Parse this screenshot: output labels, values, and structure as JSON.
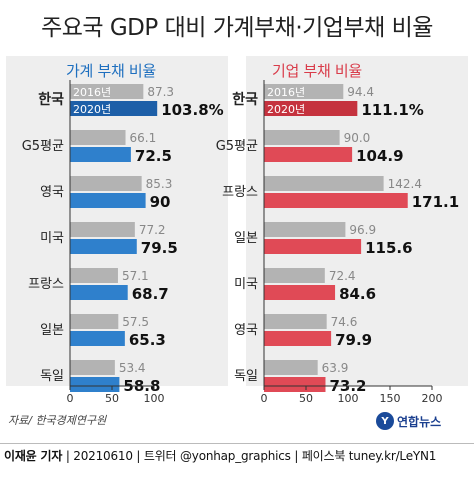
{
  "title": "주요국 GDP 대비 가계부채·기업부채 비율",
  "source": "자료/ 한국경제연구원",
  "logo": {
    "text": "연합뉴스",
    "mark": "Y"
  },
  "footer": {
    "author": "이재윤 기자",
    "date": "20210610",
    "twitter": "트위터 @yonhap_graphics",
    "facebook": "페이스북 tuney.kr/LeYN1"
  },
  "colors": {
    "gray_bar": "#b3b3b3",
    "left_accent": "#2f80cc",
    "left_korea": "#1d5fa8",
    "right_accent": "#e04a56",
    "right_korea": "#c5323e",
    "panel_bg": "#eeeeee"
  },
  "chart_data": [
    {
      "type": "bar",
      "title": "가계 부채 비율",
      "categories": [
        "한국",
        "G5평균",
        "영국",
        "미국",
        "프랑스",
        "일본",
        "독일"
      ],
      "series": [
        {
          "name": "2016년",
          "values": [
            87.3,
            66.1,
            85.3,
            77.2,
            57.1,
            57.5,
            53.4
          ]
        },
        {
          "name": "2020년",
          "values": [
            103.8,
            72.5,
            90,
            79.5,
            68.7,
            65.3,
            58.8
          ]
        }
      ],
      "value_labels_2016": [
        "87.3",
        "66.1",
        "85.3",
        "77.2",
        "57.1",
        "57.5",
        "53.4"
      ],
      "value_labels_2020": [
        "103.8%",
        "72.5",
        "90",
        "79.5",
        "68.7",
        "65.3",
        "58.8"
      ],
      "xlim": [
        0,
        100
      ],
      "ticks": [
        "0",
        "50",
        "100"
      ],
      "tick_values": [
        0,
        50,
        100
      ]
    },
    {
      "type": "bar",
      "title": "기업 부채 비율",
      "categories": [
        "한국",
        "G5평균",
        "프랑스",
        "일본",
        "미국",
        "영국",
        "독일"
      ],
      "series": [
        {
          "name": "2016년",
          "values": [
            94.4,
            90.0,
            142.4,
            96.9,
            72.4,
            74.6,
            63.9
          ]
        },
        {
          "name": "2020년",
          "values": [
            111.1,
            104.9,
            171.1,
            115.6,
            84.6,
            79.9,
            73.2
          ]
        }
      ],
      "value_labels_2016": [
        "94.4",
        "90.0",
        "142.4",
        "96.9",
        "72.4",
        "74.6",
        "63.9"
      ],
      "value_labels_2020": [
        "111.1%",
        "104.9",
        "171.1",
        "115.6",
        "84.6",
        "79.9",
        "73.2"
      ],
      "xlim": [
        0,
        200
      ],
      "ticks": [
        "0",
        "50",
        "100",
        "150",
        "200"
      ],
      "tick_values": [
        0,
        50,
        100,
        150,
        200
      ]
    }
  ]
}
